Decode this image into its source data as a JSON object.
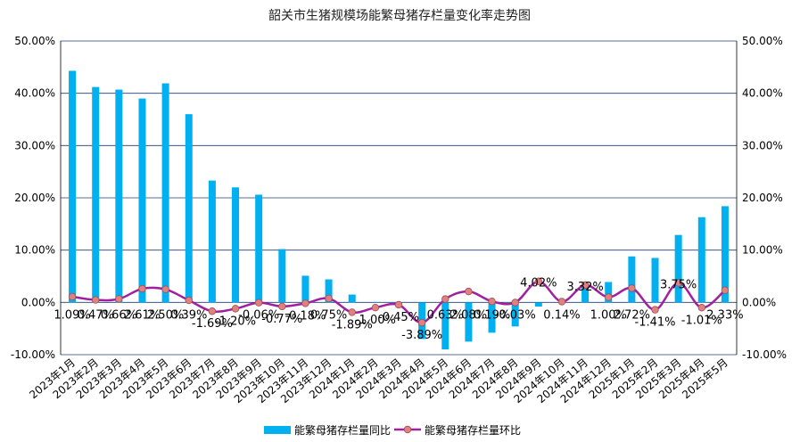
{
  "chart_data": {
    "type": "bar",
    "title": "韶关市生猪规模场能繁母猪存栏量变化率走势图",
    "categories": [
      "2023年1月",
      "2023年2月",
      "2023年3月",
      "2023年4月",
      "2023年5月",
      "2023年6月",
      "2023年7月",
      "2023年8月",
      "2023年9月",
      "2023年10月",
      "2023年11月",
      "2023年12月",
      "2024年1月",
      "2024年2月",
      "2024年3月",
      "2024年4月",
      "2024年5月",
      "2024年6月",
      "2024年7月",
      "2024年8月",
      "2024年9月",
      "2024年10月",
      "2024年11月",
      "2024年12月",
      "2025年1月",
      "2025年2月",
      "2025年3月",
      "2025年4月",
      "2025年5月"
    ],
    "series": [
      {
        "name": "能繁母猪存栏量同比",
        "type": "bar",
        "color": "#00b0f0",
        "values": [
          44.3,
          41.2,
          40.7,
          39.0,
          41.9,
          36.0,
          23.3,
          22.0,
          20.6,
          10.2,
          5.1,
          4.4,
          1.5,
          0.0,
          0.0,
          -7.0,
          -9.0,
          -7.5,
          -5.8,
          -4.6,
          -0.8,
          0.0,
          3.3,
          3.9,
          8.8,
          8.5,
          12.9,
          16.3,
          18.4
        ]
      },
      {
        "name": "能繁母猪存栏量环比",
        "type": "line",
        "color": "#a020a0",
        "marker_color": "#e08080",
        "values": [
          1.09,
          0.47,
          0.66,
          2.61,
          2.5,
          0.39,
          -1.69,
          -1.2,
          -0.06,
          -0.77,
          -0.18,
          0.75,
          -1.89,
          -1.0,
          -0.45,
          -3.89,
          0.63,
          2.08,
          0.19,
          -0.03,
          4.02,
          0.14,
          3.32,
          1.0,
          2.72,
          -1.41,
          3.75,
          -1.01,
          2.33
        ],
        "data_labels": [
          "1.09%",
          "0.47%",
          "0.66%",
          "2.61%",
          "2.50%",
          "0.39%",
          "-1.69%",
          "-1.20%",
          "-0.06%",
          "-0.77%",
          "-0.18%",
          "0.75%",
          "-1.89%",
          "-1.00%",
          "-0.45%",
          "-3.89%",
          "0.63%",
          "2.08%",
          "0.19%",
          "-0.03%",
          "4.02%",
          "0.14%",
          "3.32%",
          "1.00%",
          "2.72%",
          "-1.41%",
          "3.75%",
          "-1.01%",
          "2.33%"
        ]
      }
    ],
    "yticks": [
      "50.00%",
      "40.00%",
      "30.00%",
      "20.00%",
      "10.00%",
      "0.00%",
      "-10.00%"
    ],
    "ylim": [
      -10,
      50
    ],
    "y2lim": [
      -10,
      50
    ],
    "grid": true,
    "legend": "bottom"
  }
}
